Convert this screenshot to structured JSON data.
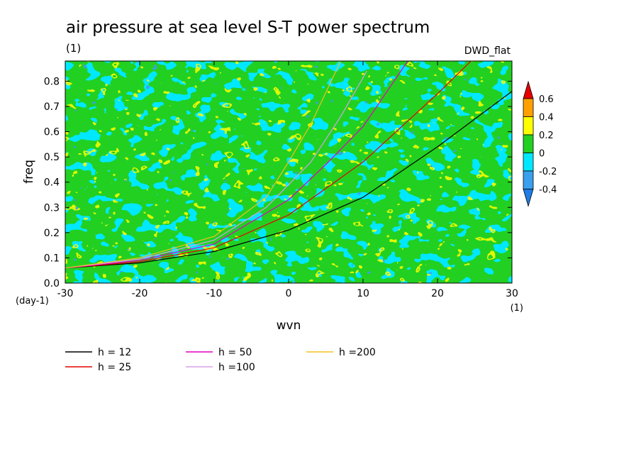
{
  "chart_data": {
    "type": "heatmap",
    "title": "air pressure at sea level S-T power spectrum",
    "subtitle": "(1)",
    "source_label": "DWD_flat",
    "xlabel": "wvn",
    "ylabel": "freq",
    "x_unit": "(1)",
    "y_unit": "(day-1)",
    "xlim": [
      -30,
      30
    ],
    "ylim": [
      0.0,
      0.88
    ],
    "x_ticks": [
      -30,
      -20,
      -10,
      0,
      10,
      20,
      30
    ],
    "x_tick_labels": [
      "-30",
      "-20",
      "-10",
      "0",
      "10",
      "20",
      "30"
    ],
    "y_ticks": [
      0.0,
      0.1,
      0.2,
      0.3,
      0.4,
      0.5,
      0.6,
      0.7,
      0.8
    ],
    "y_tick_labels": [
      "0.0",
      "0.1",
      "0.2",
      "0.3",
      "0.4",
      "0.5",
      "0.6",
      "0.7",
      "0.8"
    ],
    "colorbar": {
      "levels": [
        -0.4,
        -0.2,
        0,
        0.2,
        0.4,
        0.6
      ],
      "labels": [
        "-0.4",
        "-0.2",
        "0",
        "0.2",
        "0.4",
        "0.6"
      ],
      "colors": [
        "#1e7de6",
        "#3aa0ee",
        "#00e8ff",
        "#22d022",
        "#ffff00",
        "#ffa000",
        "#e60000"
      ]
    },
    "series": [
      {
        "name": "h = 12",
        "color": "#000000",
        "points": [
          [
            -30,
            0.06
          ],
          [
            -20,
            0.08
          ],
          [
            -10,
            0.125
          ],
          [
            0,
            0.21
          ],
          [
            10,
            0.34
          ],
          [
            20,
            0.54
          ],
          [
            30,
            0.76
          ]
        ]
      },
      {
        "name": "h = 25",
        "color": "#e60000",
        "points": [
          [
            -30,
            0.06
          ],
          [
            -20,
            0.085
          ],
          [
            -10,
            0.14
          ],
          [
            0,
            0.27
          ],
          [
            10,
            0.48
          ],
          [
            20,
            0.75
          ],
          [
            24.5,
            0.88
          ]
        ]
      },
      {
        "name": "h = 50",
        "color": "#e000c0",
        "points": [
          [
            -30,
            0.06
          ],
          [
            -20,
            0.09
          ],
          [
            -10,
            0.155
          ],
          [
            0,
            0.33
          ],
          [
            5,
            0.47
          ],
          [
            10,
            0.62
          ],
          [
            16,
            0.88
          ]
        ]
      },
      {
        "name": "h =100",
        "color": "#d8a0e8",
        "points": [
          [
            -30,
            0.06
          ],
          [
            -20,
            0.095
          ],
          [
            -10,
            0.17
          ],
          [
            -3,
            0.3
          ],
          [
            3,
            0.48
          ],
          [
            7,
            0.66
          ],
          [
            10.5,
            0.84
          ]
        ]
      },
      {
        "name": "h =200",
        "color": "#f0c020",
        "points": [
          [
            -30,
            0.06
          ],
          [
            -20,
            0.1
          ],
          [
            -10,
            0.185
          ],
          [
            -3,
            0.34
          ],
          [
            0,
            0.48
          ],
          [
            3,
            0.63
          ],
          [
            7,
            0.88
          ]
        ]
      }
    ]
  }
}
